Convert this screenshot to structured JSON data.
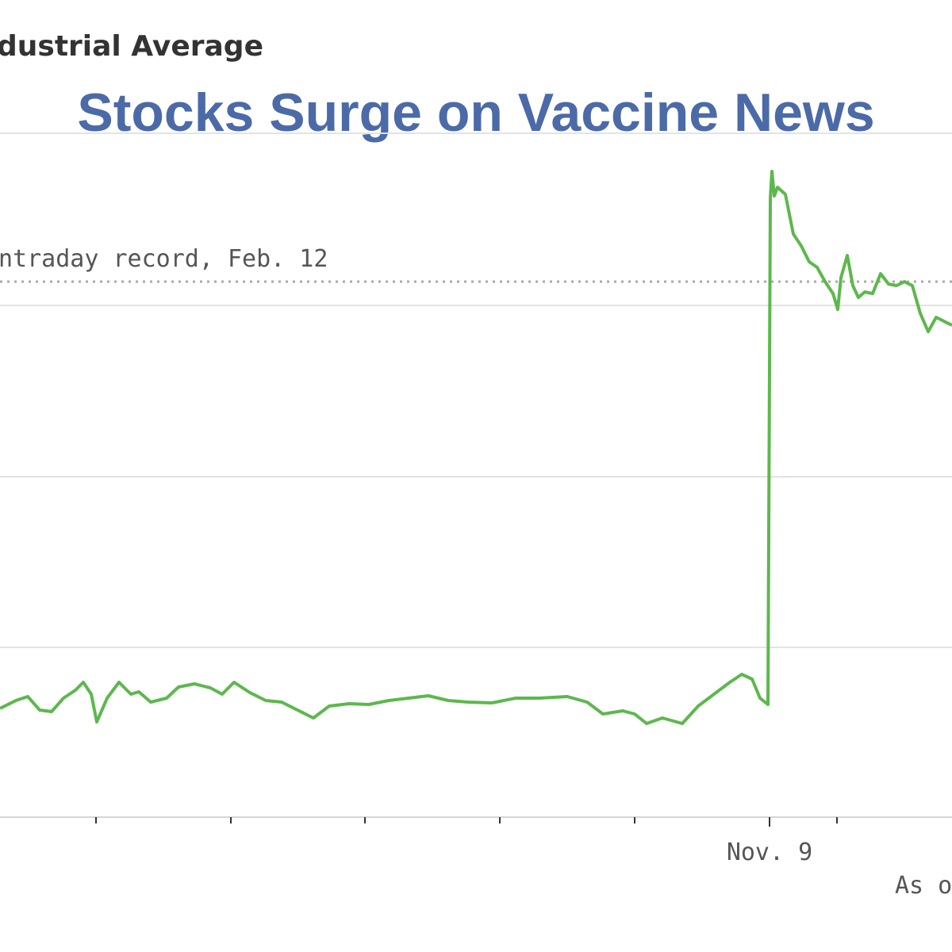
{
  "chart_data": {
    "type": "line",
    "title": "Stocks Surge on Vaccine News",
    "subtitle": "dustrial Average",
    "reference_line": {
      "label": "ntraday record, Feb. 12"
    },
    "x_tick_labels": [
      "Nov. 9"
    ],
    "footnote": "As of",
    "series": [
      {
        "color": "#5cb84c",
        "points": [
          [
            0,
            893
          ],
          [
            20,
            883
          ],
          [
            35,
            878
          ],
          [
            50,
            895
          ],
          [
            65,
            897
          ],
          [
            80,
            880
          ],
          [
            95,
            870
          ],
          [
            105,
            860
          ],
          [
            115,
            875
          ],
          [
            122,
            910
          ],
          [
            135,
            880
          ],
          [
            150,
            860
          ],
          [
            165,
            875
          ],
          [
            175,
            872
          ],
          [
            190,
            885
          ],
          [
            210,
            880
          ],
          [
            225,
            866
          ],
          [
            245,
            862
          ],
          [
            265,
            867
          ],
          [
            280,
            875
          ],
          [
            295,
            860
          ],
          [
            315,
            873
          ],
          [
            335,
            883
          ],
          [
            355,
            885
          ],
          [
            375,
            895
          ],
          [
            395,
            905
          ],
          [
            415,
            890
          ],
          [
            440,
            887
          ],
          [
            465,
            888
          ],
          [
            490,
            883
          ],
          [
            515,
            880
          ],
          [
            540,
            877
          ],
          [
            565,
            883
          ],
          [
            590,
            885
          ],
          [
            620,
            886
          ],
          [
            650,
            880
          ],
          [
            680,
            880
          ],
          [
            715,
            878
          ],
          [
            740,
            885
          ],
          [
            760,
            900
          ],
          [
            785,
            896
          ],
          [
            800,
            900
          ],
          [
            815,
            912
          ],
          [
            835,
            905
          ],
          [
            860,
            912
          ],
          [
            880,
            890
          ],
          [
            900,
            875
          ],
          [
            920,
            860
          ],
          [
            935,
            850
          ],
          [
            948,
            856
          ],
          [
            958,
            880
          ],
          [
            968,
            888
          ],
          [
            971,
            250
          ],
          [
            973,
            216
          ],
          [
            976,
            247
          ],
          [
            980,
            236
          ],
          [
            990,
            245
          ],
          [
            1000,
            295
          ],
          [
            1010,
            310
          ],
          [
            1020,
            330
          ],
          [
            1030,
            337
          ],
          [
            1040,
            355
          ],
          [
            1050,
            370
          ],
          [
            1056,
            390
          ],
          [
            1060,
            350
          ],
          [
            1068,
            322
          ],
          [
            1075,
            360
          ],
          [
            1082,
            375
          ],
          [
            1090,
            368
          ],
          [
            1100,
            370
          ],
          [
            1110,
            345
          ],
          [
            1120,
            358
          ],
          [
            1130,
            360
          ],
          [
            1140,
            355
          ],
          [
            1150,
            360
          ],
          [
            1160,
            395
          ],
          [
            1170,
            418
          ],
          [
            1180,
            400
          ],
          [
            1190,
            405
          ],
          [
            1200,
            410
          ]
        ]
      }
    ]
  }
}
